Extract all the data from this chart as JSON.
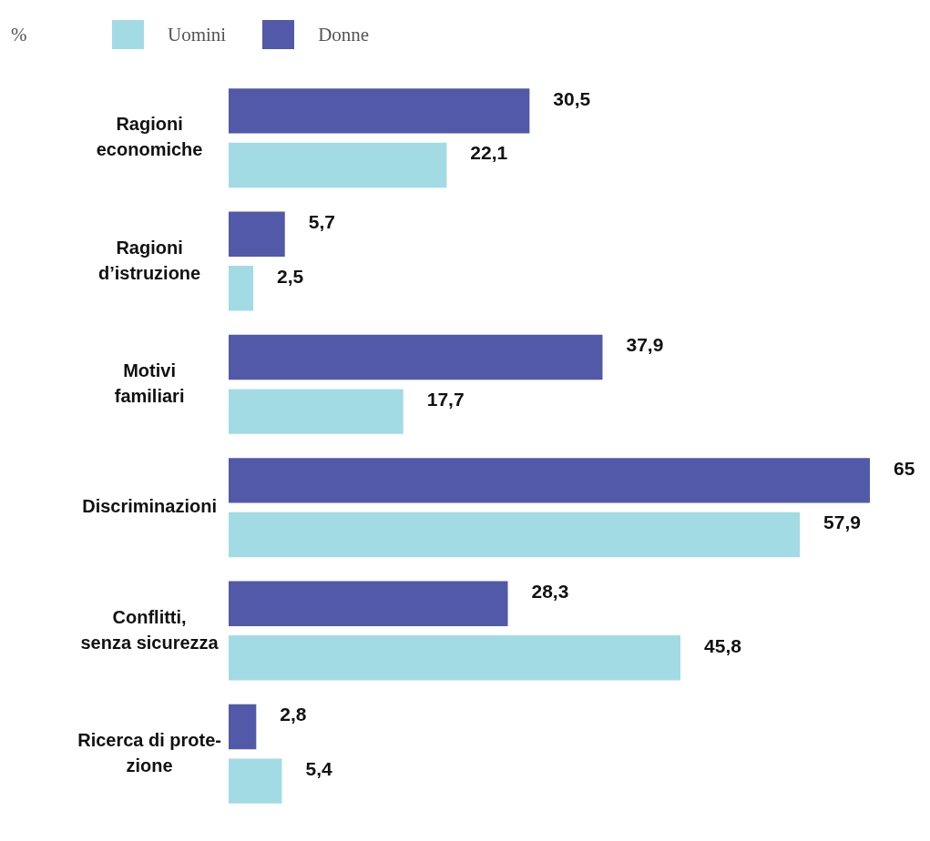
{
  "chart_data": {
    "type": "bar",
    "orientation": "horizontal",
    "annotations": [
      "%"
    ],
    "legend": "top left",
    "tick_labels": "y",
    "categories": [
      "Ragioni\neconomiche",
      "Ragioni\nd’istruzione",
      "Motivi\nfamiliari",
      "Discriminazioni",
      "Conflitti,\nsenza sicurezza",
      "Ricerca di prote-\nzione"
    ],
    "xlim": [
      0,
      65
    ],
    "series": [
      {
        "name": "Donne",
        "color": "#5159a8",
        "values": [
          30.5,
          5.7,
          37.9,
          65,
          28.3,
          2.8
        ],
        "value_labels": [
          "30,5",
          "5,7",
          "37,9",
          "65",
          "28,3",
          "2,8"
        ]
      },
      {
        "name": "Uomini",
        "color": "#a3dbe4",
        "values": [
          22.1,
          2.5,
          17.7,
          57.9,
          45.8,
          5.4
        ],
        "value_labels": [
          "22,1",
          "2,5",
          "17,7",
          "57,9",
          "45,8",
          "5,4"
        ]
      }
    ]
  }
}
